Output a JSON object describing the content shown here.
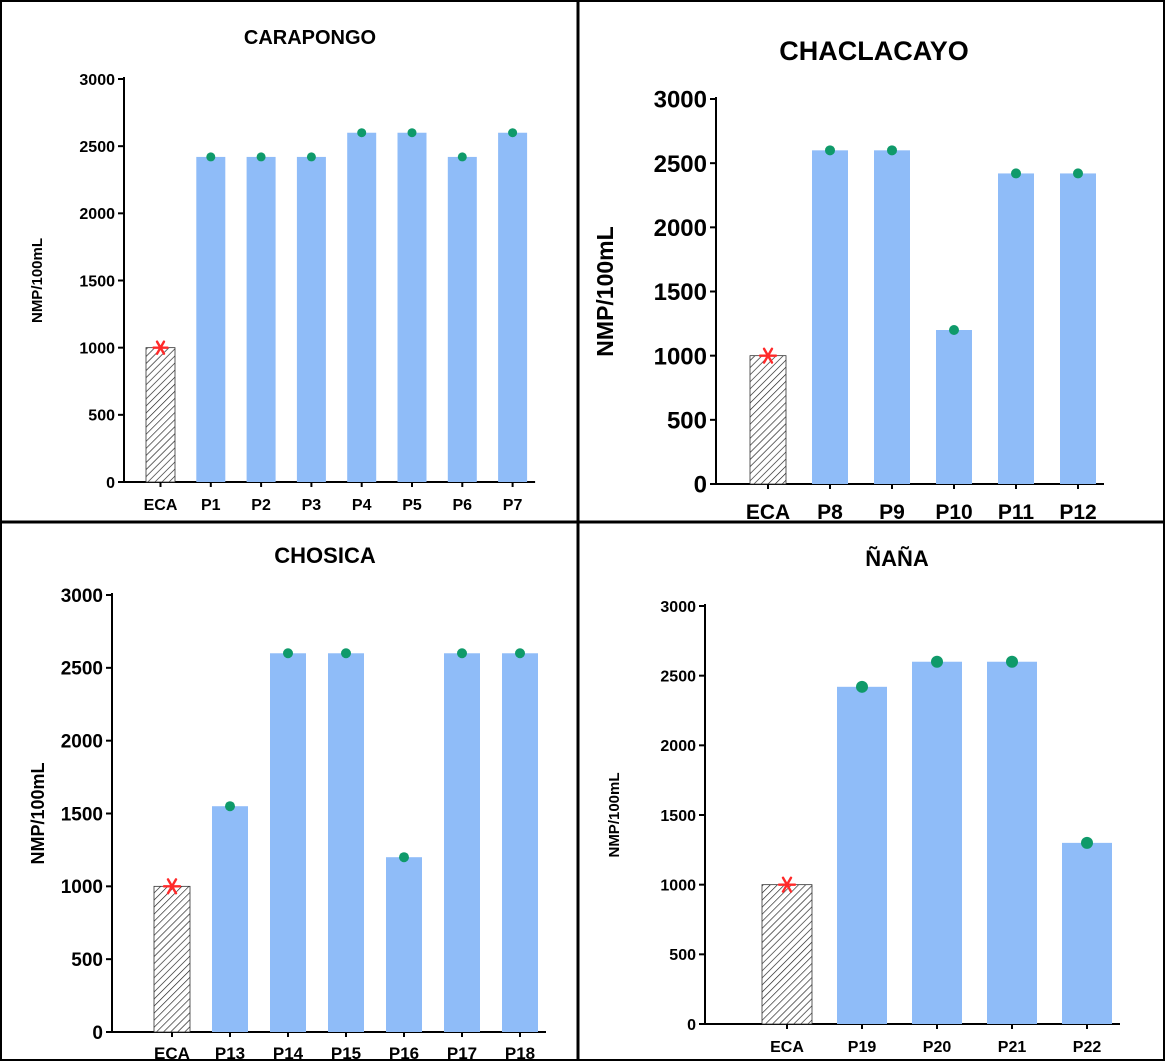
{
  "chart_data": [
    {
      "type": "bar",
      "title": "CARAPONGO",
      "ylabel": "NMP/100mL",
      "xlabel": "",
      "ylim": [
        0,
        3000
      ],
      "yticks": [
        0,
        500,
        1000,
        1500,
        2000,
        2500,
        3000
      ],
      "grid": false,
      "categories": [
        "ECA",
        "P1",
        "P2",
        "P3",
        "P4",
        "P5",
        "P6",
        "P7"
      ],
      "values": [
        1000,
        2420,
        2420,
        2420,
        2600,
        2600,
        2420,
        2600
      ]
    },
    {
      "type": "bar",
      "title": "CHACLACAYO",
      "ylabel": "NMP/100mL",
      "xlabel": "",
      "ylim": [
        0,
        3000
      ],
      "yticks": [
        0,
        500,
        1000,
        1500,
        2000,
        2500,
        3000
      ],
      "grid": false,
      "categories": [
        "ECA",
        "P8",
        "P9",
        "P10",
        "P11",
        "P12"
      ],
      "values": [
        1000,
        2600,
        2600,
        1200,
        2420,
        2420
      ]
    },
    {
      "type": "bar",
      "title": "CHOSICA",
      "ylabel": "NMP/100mL",
      "xlabel": "",
      "ylim": [
        0,
        3000
      ],
      "yticks": [
        0,
        500,
        1000,
        1500,
        2000,
        2500,
        3000
      ],
      "grid": false,
      "categories": [
        "ECA",
        "P13",
        "P14",
        "P15",
        "P16",
        "P17",
        "P18"
      ],
      "values": [
        1000,
        1550,
        2600,
        2600,
        1200,
        2600,
        2600
      ]
    },
    {
      "type": "bar",
      "title": "ÑAÑA",
      "ylabel": "NMP/100mL",
      "xlabel": "",
      "ylim": [
        0,
        3000
      ],
      "yticks": [
        0,
        500,
        1000,
        1500,
        2000,
        2500,
        3000
      ],
      "grid": false,
      "categories": [
        "ECA",
        "P19",
        "P20",
        "P21",
        "P22"
      ],
      "values": [
        1000,
        2420,
        2600,
        2600,
        1300
      ]
    }
  ],
  "colors": {
    "bar": "#8fbcf8",
    "eca_hatch": "#1a1a1a",
    "eca_marker": "#ff2a2a",
    "point_marker": "#0f9a6a",
    "frame": "#000000"
  },
  "markers": {
    "eca": "red-asterisk",
    "points": "green-dot"
  }
}
